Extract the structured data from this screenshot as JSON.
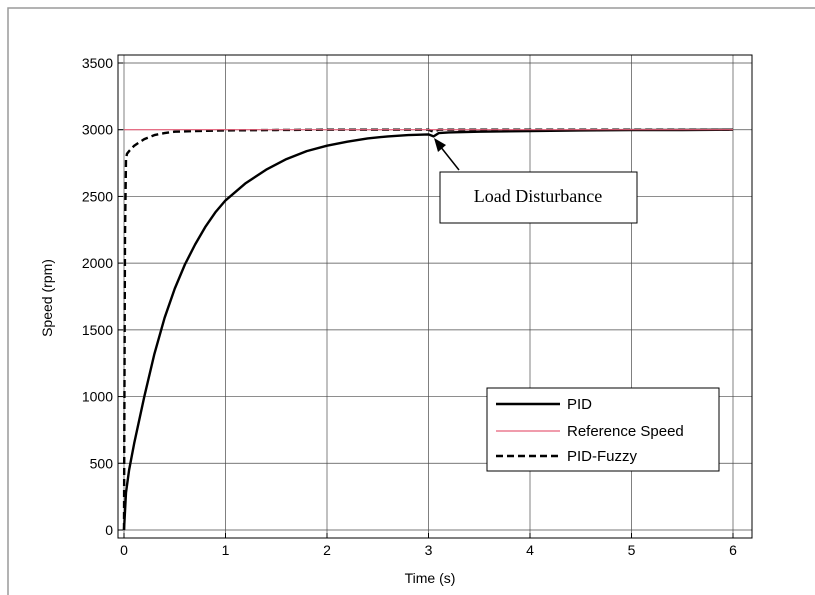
{
  "chart_data": {
    "type": "line",
    "xlabel": "Time (s)",
    "ylabel": "Speed (rpm)",
    "xlim": [
      0,
      6
    ],
    "ylim": [
      0,
      3500
    ],
    "x_ticks": [
      "0",
      "1",
      "2",
      "3",
      "4",
      "5",
      "6"
    ],
    "y_ticks": [
      "0",
      "500",
      "1000",
      "1500",
      "2000",
      "2500",
      "3000",
      "3500"
    ],
    "grid": true,
    "legend_position": "bottom-right",
    "annotation": {
      "text": "Load Disturbance",
      "x": 3.05,
      "y": 2960
    },
    "series": [
      {
        "name": "PID",
        "style": "solid",
        "color": "#000000",
        "x": [
          0,
          0.02,
          0.05,
          0.1,
          0.2,
          0.3,
          0.4,
          0.5,
          0.6,
          0.7,
          0.8,
          0.9,
          1.0,
          1.2,
          1.4,
          1.6,
          1.8,
          2.0,
          2.2,
          2.4,
          2.6,
          2.8,
          3.0,
          3.05,
          3.1,
          3.2,
          3.5,
          4.0,
          4.5,
          5.0,
          5.5,
          6.0
        ],
        "y": [
          0,
          280,
          450,
          650,
          1000,
          1320,
          1590,
          1810,
          1990,
          2140,
          2270,
          2380,
          2470,
          2600,
          2700,
          2780,
          2840,
          2880,
          2910,
          2935,
          2950,
          2960,
          2965,
          2950,
          2975,
          2980,
          2985,
          2990,
          2995,
          2997,
          2998,
          3000
        ]
      },
      {
        "name": "Reference Speed",
        "style": "solid",
        "color": "#e8607a",
        "x": [
          0,
          6
        ],
        "y": [
          3000,
          3000
        ]
      },
      {
        "name": "PID-Fuzzy",
        "style": "dashed",
        "color": "#000000",
        "x": [
          0,
          0.005,
          0.01,
          0.02,
          0.03,
          0.05,
          0.1,
          0.2,
          0.3,
          0.4,
          0.5,
          0.7,
          1.0,
          1.5,
          2.0,
          3.0,
          3.05,
          3.1,
          4.0,
          5.0,
          6.0
        ],
        "y": [
          0,
          1200,
          2200,
          2780,
          2820,
          2840,
          2880,
          2930,
          2960,
          2975,
          2985,
          2990,
          2995,
          2998,
          3000,
          3000,
          2985,
          3000,
          3000,
          3000,
          3000
        ]
      }
    ]
  }
}
